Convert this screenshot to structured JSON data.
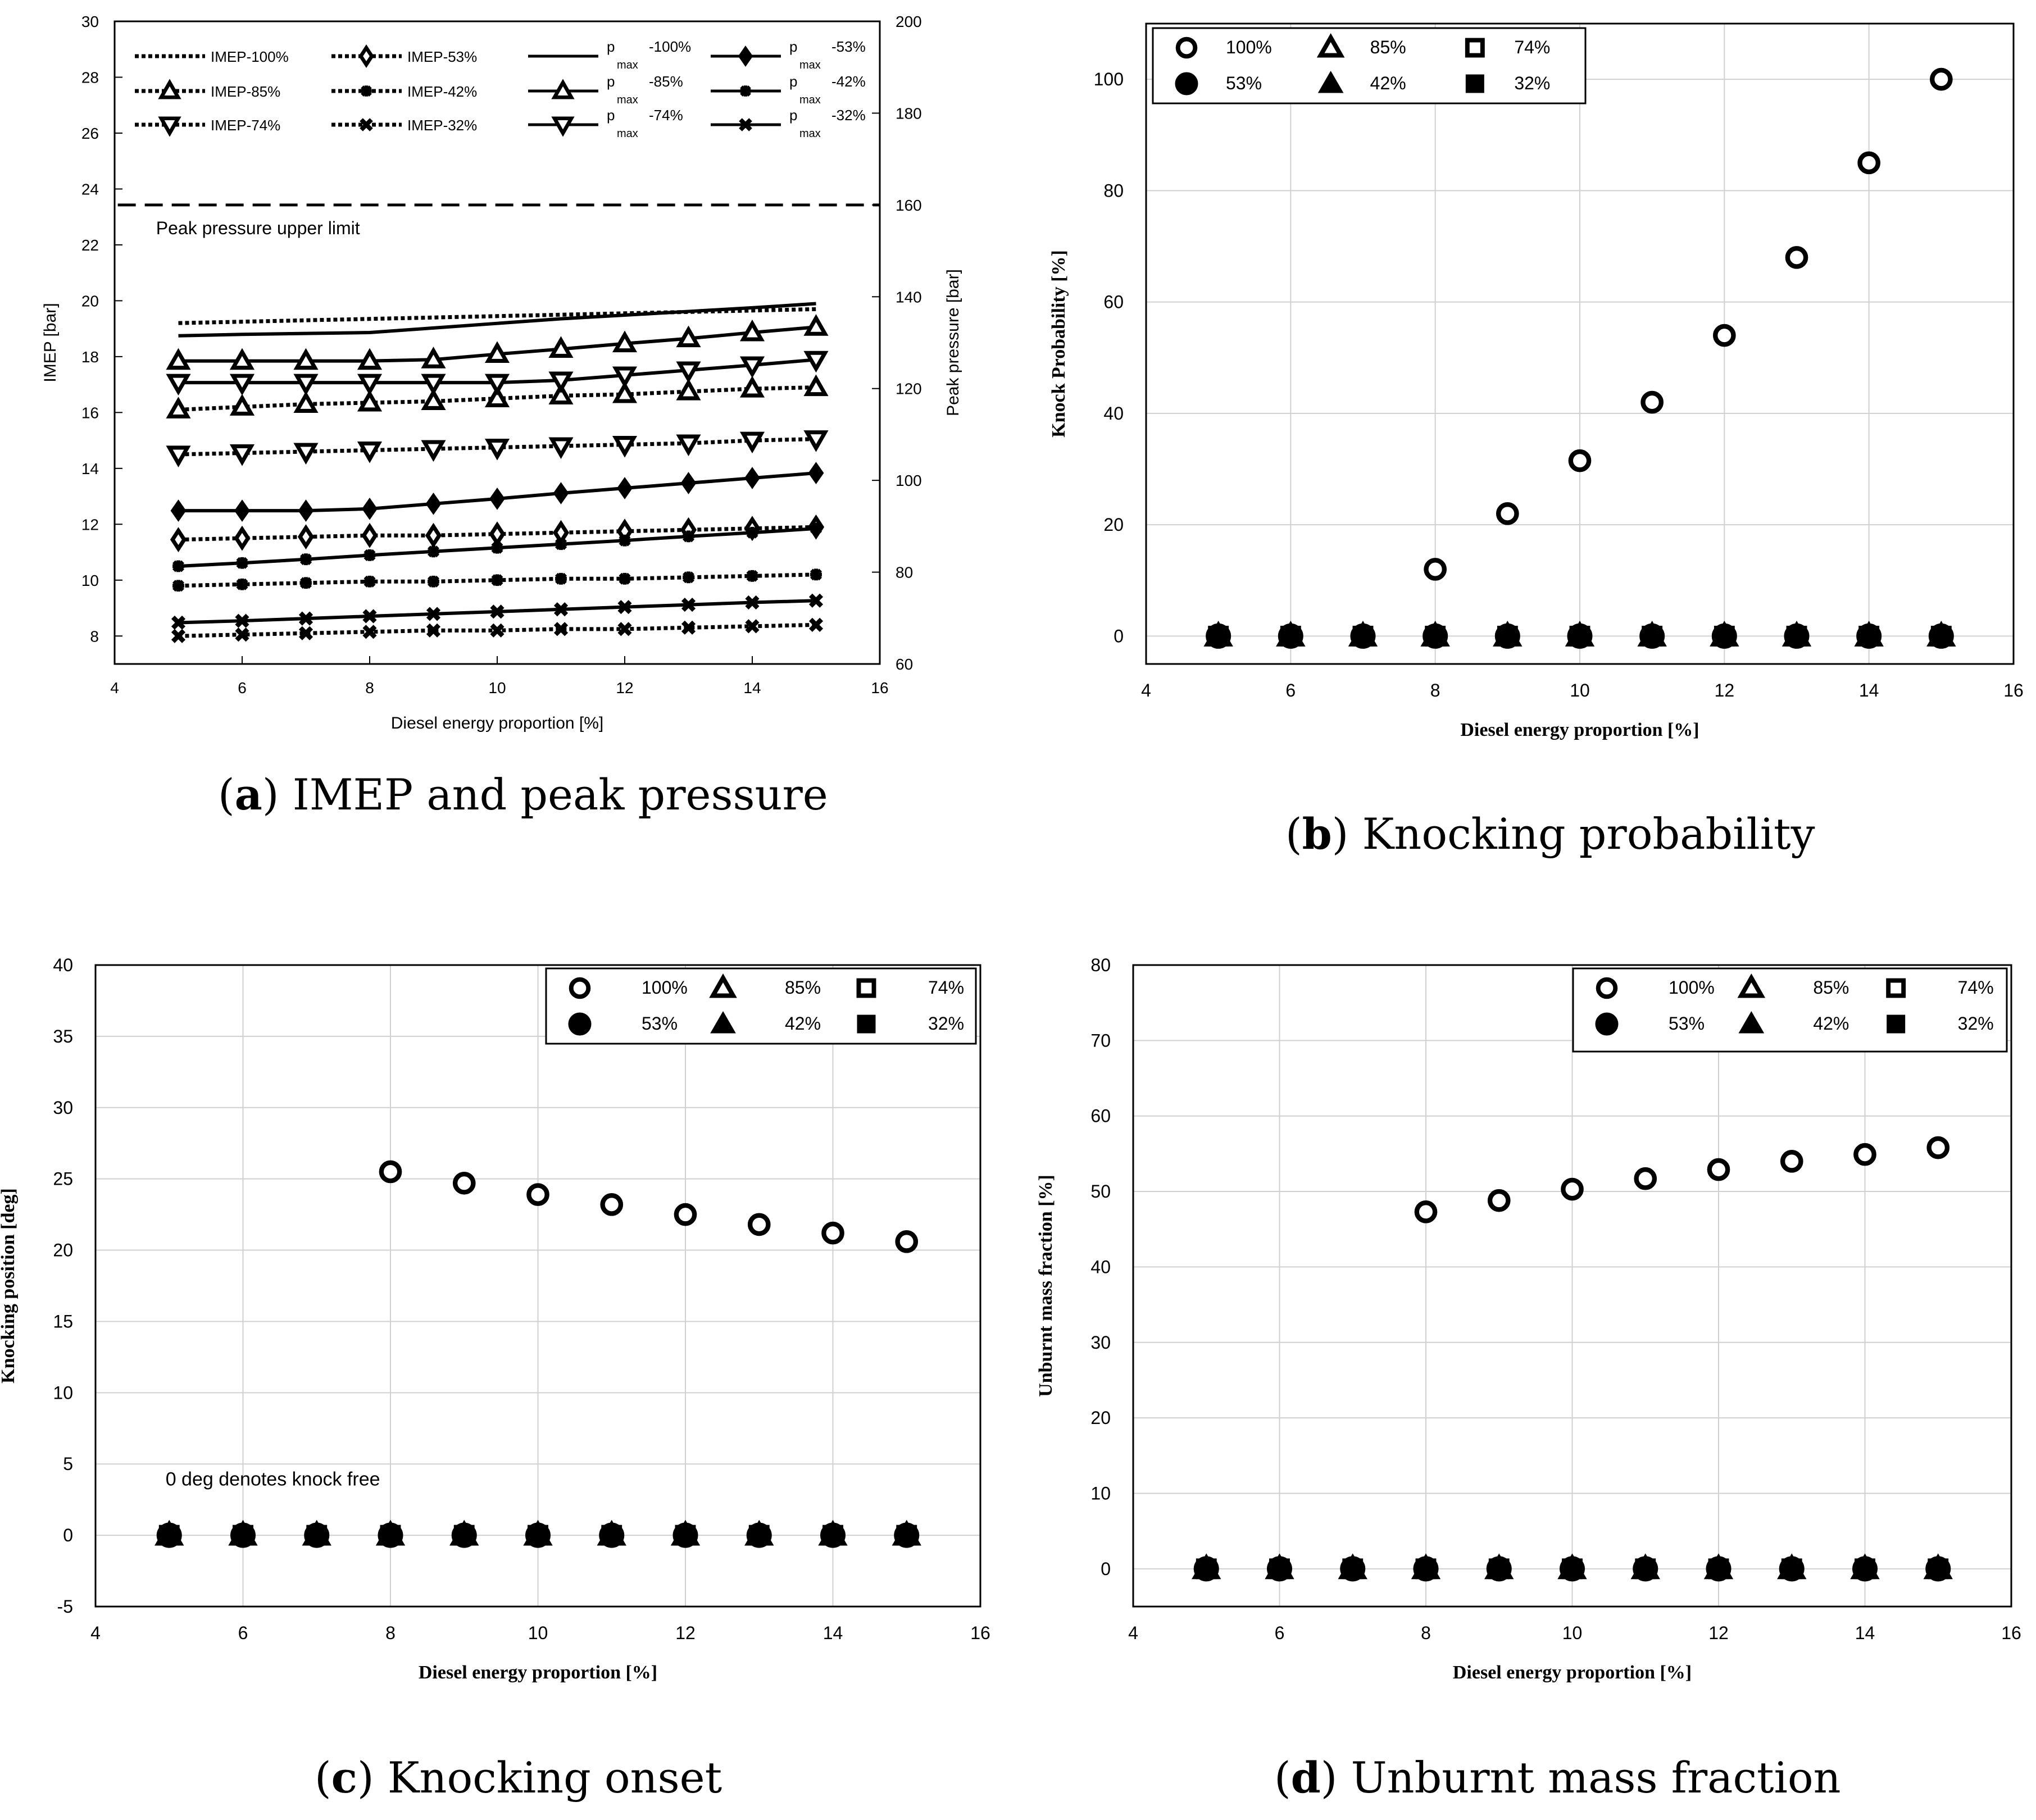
{
  "captions": [
    {
      "letter": "a",
      "pre": "(",
      "post": ") IMEP and peak pressure"
    },
    {
      "letter": "b",
      "pre": "(",
      "post": ") Knocking probability"
    },
    {
      "letter": "c",
      "pre": "(",
      "post": ") Knocking onset"
    },
    {
      "letter": "d",
      "pre": "(",
      "post": ") Unburnt mass fraction"
    }
  ],
  "chart_data": [
    {
      "id": "a",
      "type": "line",
      "xlabel": "Diesel energy proportion [%]",
      "ylabel": "IMEP [bar]",
      "y2label": "Peak pressure [bar]",
      "xlim": [
        4,
        16
      ],
      "ylim": [
        7,
        30
      ],
      "y2lim": [
        60,
        200
      ],
      "xticks": [
        4,
        6,
        8,
        10,
        12,
        14,
        16
      ],
      "yticks": [
        8,
        10,
        12,
        14,
        16,
        18,
        20,
        22,
        24,
        26,
        28,
        30
      ],
      "y2ticks": [
        60,
        80,
        100,
        120,
        140,
        160,
        180,
        200
      ],
      "grid": false,
      "annotation": "Peak pressure upper limit",
      "limit_value": 160,
      "x": [
        5,
        6,
        7,
        8,
        9,
        10,
        11,
        12,
        13,
        14,
        15
      ],
      "series": [
        {
          "name": "IMEP-100%",
          "legend": "IMEP-100%",
          "axis": "left",
          "dash": true,
          "marker": "none",
          "values": [
            19.2,
            19.25,
            19.3,
            19.35,
            19.4,
            19.45,
            19.5,
            19.55,
            19.6,
            19.65,
            19.7
          ]
        },
        {
          "name": "IMEP-85%",
          "legend": "IMEP-85%",
          "axis": "left",
          "dash": true,
          "marker": "triangle-open",
          "values": [
            16.1,
            16.2,
            16.3,
            16.35,
            16.4,
            16.5,
            16.6,
            16.65,
            16.75,
            16.85,
            16.9
          ]
        },
        {
          "name": "IMEP-74%",
          "legend": "IMEP-74%",
          "axis": "left",
          "dash": true,
          "marker": "tri-down-open",
          "values": [
            14.5,
            14.55,
            14.6,
            14.65,
            14.7,
            14.75,
            14.8,
            14.85,
            14.9,
            15.0,
            15.05
          ]
        },
        {
          "name": "IMEP-53%",
          "legend": "IMEP-53%",
          "axis": "left",
          "dash": true,
          "marker": "diamond-open",
          "values": [
            11.45,
            11.5,
            11.55,
            11.6,
            11.6,
            11.65,
            11.7,
            11.75,
            11.8,
            11.85,
            11.9
          ]
        },
        {
          "name": "IMEP-42%",
          "legend": "IMEP-42%",
          "axis": "left",
          "dash": true,
          "marker": "asterisk",
          "values": [
            9.8,
            9.85,
            9.9,
            9.95,
            9.95,
            10.0,
            10.05,
            10.05,
            10.1,
            10.15,
            10.2
          ]
        },
        {
          "name": "IMEP-32%",
          "legend": "IMEP-32%",
          "axis": "left",
          "dash": true,
          "marker": "x",
          "values": [
            8.0,
            8.05,
            8.1,
            8.15,
            8.2,
            8.2,
            8.25,
            8.25,
            8.3,
            8.35,
            8.4
          ]
        },
        {
          "name": "pmax-100%",
          "legend": "-100%",
          "axis": "right",
          "dash": false,
          "marker": "none",
          "values": [
            131.5,
            131.8,
            132.0,
            132.2,
            133.2,
            134.2,
            135.2,
            136.0,
            136.8,
            137.6,
            138.5
          ]
        },
        {
          "name": "pmax-85%",
          "legend": "-85%",
          "axis": "right",
          "dash": false,
          "marker": "triangle-open",
          "values": [
            126.0,
            126.0,
            126.0,
            126.0,
            126.3,
            127.5,
            128.6,
            129.8,
            130.9,
            132.2,
            133.4
          ]
        },
        {
          "name": "pmax-74%",
          "legend": "-74%",
          "axis": "right",
          "dash": false,
          "marker": "tri-down-open",
          "values": [
            121.3,
            121.3,
            121.3,
            121.3,
            121.3,
            121.3,
            121.8,
            122.9,
            124.0,
            125.1,
            126.3
          ]
        },
        {
          "name": "pmax-53%",
          "legend": "-53%",
          "axis": "right",
          "dash": false,
          "marker": "diamond-filled",
          "values": [
            93.4,
            93.4,
            93.4,
            93.8,
            94.9,
            96.0,
            97.2,
            98.3,
            99.4,
            100.5,
            101.6
          ]
        },
        {
          "name": "pmax-42%",
          "legend": "-42%",
          "axis": "right",
          "dash": false,
          "marker": "asterisk",
          "values": [
            81.3,
            82.0,
            82.8,
            83.7,
            84.5,
            85.3,
            86.1,
            86.9,
            87.8,
            88.6,
            89.5
          ]
        },
        {
          "name": "pmax-32%",
          "legend": "-32%",
          "axis": "right",
          "dash": false,
          "marker": "x",
          "values": [
            69.0,
            69.4,
            69.9,
            70.4,
            70.9,
            71.4,
            71.9,
            72.4,
            72.9,
            73.4,
            73.8
          ]
        }
      ],
      "legend_prefix": "p",
      "legend_sub": "max"
    },
    {
      "id": "b",
      "type": "scatter",
      "xlabel": "Diesel energy proportion [%]",
      "ylabel": "Knock Probability [%]",
      "xlim": [
        4,
        16
      ],
      "ylim": [
        -5,
        110
      ],
      "xticks": [
        4,
        6,
        8,
        10,
        12,
        14,
        16
      ],
      "yticks": [
        0,
        20,
        40,
        60,
        80,
        100
      ],
      "grid": true,
      "legend_position": "top-left",
      "x": [
        5,
        6,
        7,
        8,
        9,
        10,
        11,
        12,
        13,
        14,
        15
      ],
      "series": [
        {
          "name": "100%",
          "marker": "circle-open",
          "values": [
            null,
            null,
            null,
            12,
            22,
            31.5,
            42,
            54,
            68,
            85,
            100
          ]
        },
        {
          "name": "85%",
          "marker": "triangle-open",
          "values": [
            0,
            0,
            0,
            0,
            0,
            0,
            0,
            0,
            0,
            0,
            0
          ]
        },
        {
          "name": "74%",
          "marker": "square-open",
          "values": [
            0,
            0,
            0,
            0,
            0,
            0,
            0,
            0,
            0,
            0,
            0
          ]
        },
        {
          "name": "53%",
          "marker": "circle-filled",
          "values": [
            0,
            0,
            0,
            0,
            0,
            0,
            0,
            0,
            0,
            0,
            0
          ]
        },
        {
          "name": "42%",
          "marker": "triangle-filled",
          "values": [
            0,
            0,
            0,
            0,
            0,
            0,
            0,
            0,
            0,
            0,
            0
          ]
        },
        {
          "name": "32%",
          "marker": "square-filled",
          "values": [
            0,
            0,
            0,
            0,
            0,
            0,
            0,
            0,
            0,
            0,
            0
          ]
        }
      ]
    },
    {
      "id": "c",
      "type": "scatter",
      "xlabel": "Diesel energy proportion [%]",
      "ylabel": "Knocking position [deg]",
      "xlim": [
        4,
        16
      ],
      "ylim": [
        -5,
        40
      ],
      "xticks": [
        4,
        6,
        8,
        10,
        12,
        14,
        16
      ],
      "yticks": [
        -5,
        0,
        5,
        10,
        15,
        20,
        25,
        30,
        35,
        40
      ],
      "grid": true,
      "legend_position": "top-right",
      "annotation": "0 deg denotes knock free",
      "x": [
        5,
        6,
        7,
        8,
        9,
        10,
        11,
        12,
        13,
        14,
        15
      ],
      "series": [
        {
          "name": "100%",
          "marker": "circle-open",
          "values": [
            null,
            null,
            null,
            25.5,
            24.7,
            23.9,
            23.2,
            22.5,
            21.8,
            21.2,
            20.6
          ]
        },
        {
          "name": "85%",
          "marker": "triangle-open",
          "values": [
            0,
            0,
            0,
            0,
            0,
            0,
            0,
            0,
            0,
            0,
            0
          ]
        },
        {
          "name": "74%",
          "marker": "square-open",
          "values": [
            0,
            0,
            0,
            0,
            0,
            0,
            0,
            0,
            0,
            0,
            0
          ]
        },
        {
          "name": "53%",
          "marker": "circle-filled",
          "values": [
            0,
            0,
            0,
            0,
            0,
            0,
            0,
            0,
            0,
            0,
            0
          ]
        },
        {
          "name": "42%",
          "marker": "triangle-filled",
          "values": [
            0,
            0,
            0,
            0,
            0,
            0,
            0,
            0,
            0,
            0,
            0
          ]
        },
        {
          "name": "32%",
          "marker": "square-filled",
          "values": [
            0,
            0,
            0,
            0,
            0,
            0,
            0,
            0,
            0,
            0,
            0
          ]
        }
      ]
    },
    {
      "id": "d",
      "type": "scatter",
      "xlabel": "Diesel energy proportion [%]",
      "ylabel": "Unburnt mass fraction [%]",
      "xlim": [
        4,
        16
      ],
      "ylim": [
        -5,
        80
      ],
      "xticks": [
        4,
        6,
        8,
        10,
        12,
        14,
        16
      ],
      "yticks": [
        0,
        10,
        20,
        30,
        40,
        50,
        60,
        70,
        80
      ],
      "grid": true,
      "legend_position": "top-right",
      "x": [
        5,
        6,
        7,
        8,
        9,
        10,
        11,
        12,
        13,
        14,
        15
      ],
      "series": [
        {
          "name": "100%",
          "marker": "circle-open",
          "values": [
            null,
            null,
            null,
            47.3,
            48.8,
            50.3,
            51.7,
            52.9,
            54.0,
            54.9,
            55.8
          ]
        },
        {
          "name": "85%",
          "marker": "triangle-open",
          "values": [
            0,
            0,
            0,
            0,
            0,
            0,
            0,
            0,
            0,
            0,
            0
          ]
        },
        {
          "name": "74%",
          "marker": "square-open",
          "values": [
            0,
            0,
            0,
            0,
            0,
            0,
            0,
            0,
            0,
            0,
            0
          ]
        },
        {
          "name": "53%",
          "marker": "circle-filled",
          "values": [
            0,
            0,
            0,
            0,
            0,
            0,
            0,
            0,
            0,
            0,
            0
          ]
        },
        {
          "name": "42%",
          "marker": "triangle-filled",
          "values": [
            0,
            0,
            0,
            0,
            0,
            0,
            0,
            0,
            0,
            0,
            0
          ]
        },
        {
          "name": "32%",
          "marker": "square-filled",
          "values": [
            0,
            0,
            0,
            0,
            0,
            0,
            0,
            0,
            0,
            0,
            0
          ]
        }
      ]
    }
  ]
}
